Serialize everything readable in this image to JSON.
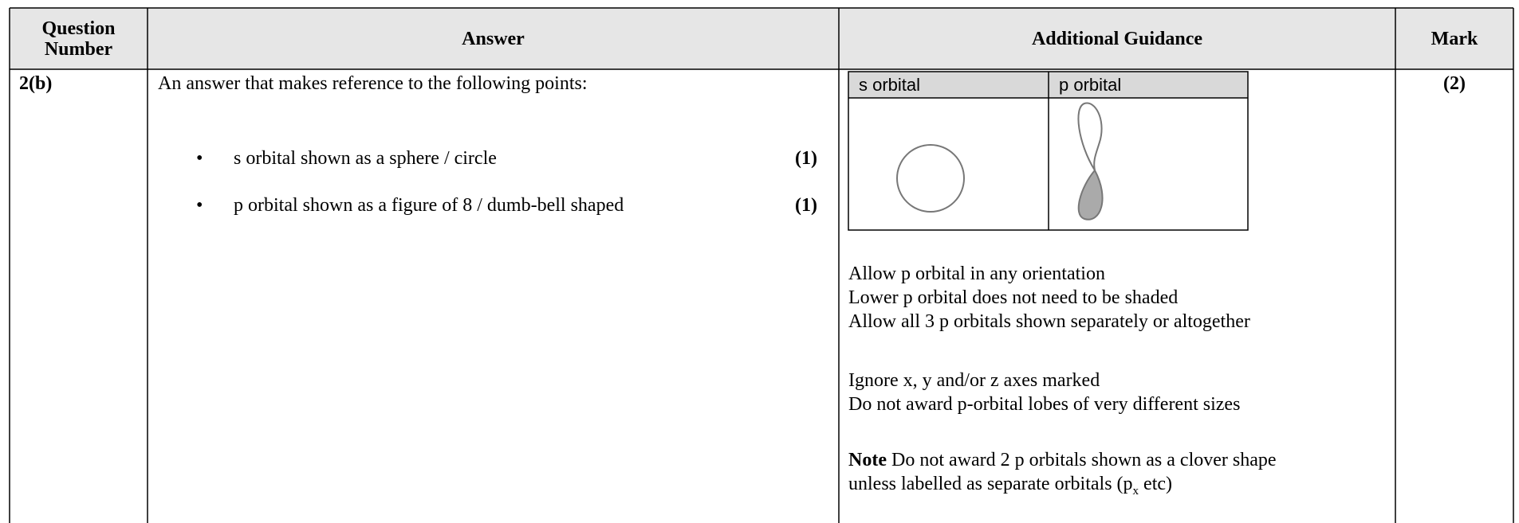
{
  "table": {
    "headers": [
      "Question Number",
      "Answer",
      "Additional Guidance",
      "Mark"
    ],
    "row": {
      "question_number": "2(b)",
      "answer": {
        "intro": "An answer that makes reference to the following points:",
        "points": [
          {
            "text": "s orbital shown as a sphere / circle",
            "mark": "(1)"
          },
          {
            "text": "p orbital shown as a figure of 8 / dumb-bell shaped",
            "mark": "(1)"
          }
        ]
      },
      "guidance": {
        "diagram_headers": [
          "s orbital",
          "p orbital"
        ],
        "lines": [
          "Allow p orbital in any orientation",
          "Lower p orbital does not need to be shaded",
          "Allow all 3 p orbitals shown separately or altogether"
        ],
        "lines2": [
          "Ignore x, y and/or z axes marked",
          "Do not award p-orbital lobes of very different sizes"
        ],
        "note": {
          "label": "Note",
          "line1": "Do not award 2 p orbitals shown as a clover shape",
          "line2": "unless labelled as separate orbitals (p",
          "subscript": "x",
          "line2_end": "etc)"
        }
      },
      "mark": "(2)"
    }
  }
}
